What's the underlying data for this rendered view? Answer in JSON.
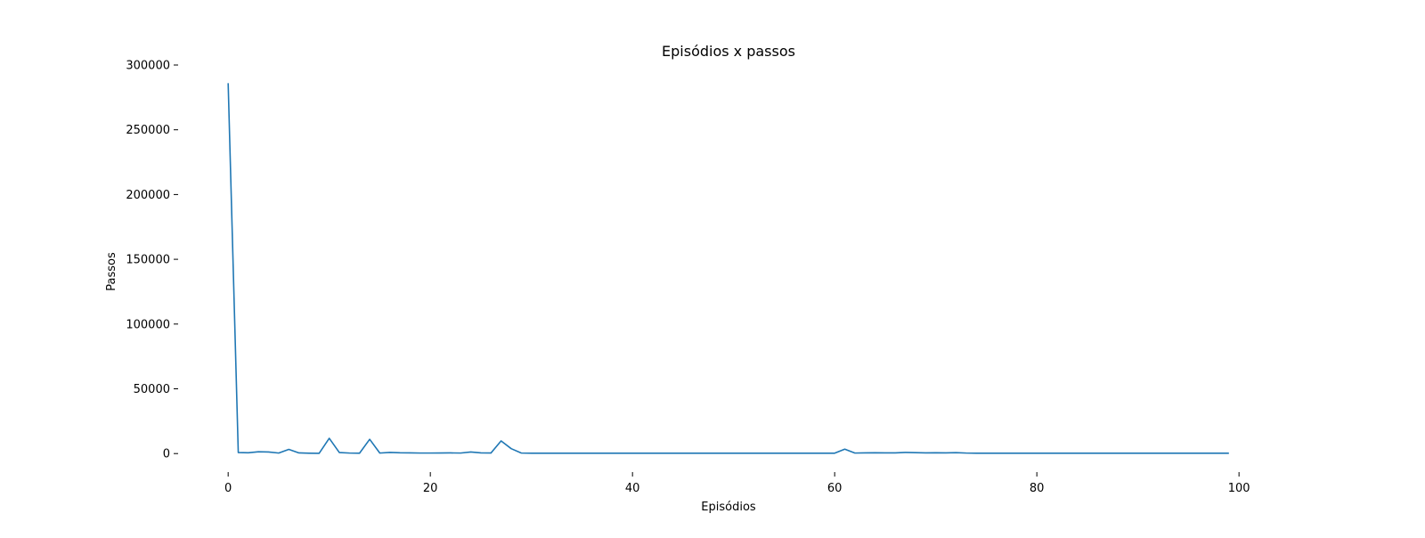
{
  "chart_data": {
    "type": "line",
    "title": "Episódios x passos",
    "xlabel": "Episódios",
    "ylabel": "Passos",
    "xlim": [
      -4.95,
      103.95
    ],
    "ylim": [
      -14300,
      300000
    ],
    "xticks": [
      0,
      20,
      40,
      60,
      80,
      100
    ],
    "yticks": [
      0,
      50000,
      100000,
      150000,
      200000,
      250000,
      300000
    ],
    "grid": false,
    "legend": "none",
    "series": [
      {
        "color": "#1f77b4",
        "x": [
          0,
          1,
          2,
          3,
          4,
          5,
          6,
          7,
          8,
          9,
          10,
          11,
          12,
          13,
          14,
          15,
          16,
          17,
          18,
          19,
          20,
          21,
          22,
          23,
          24,
          25,
          26,
          27,
          28,
          29,
          30,
          31,
          32,
          33,
          34,
          35,
          36,
          37,
          38,
          39,
          40,
          41,
          42,
          43,
          44,
          45,
          46,
          47,
          48,
          49,
          50,
          51,
          52,
          53,
          54,
          55,
          56,
          57,
          58,
          59,
          60,
          61,
          62,
          63,
          64,
          65,
          66,
          67,
          68,
          69,
          70,
          71,
          72,
          73,
          74,
          75,
          76,
          77,
          78,
          79,
          80,
          81,
          82,
          83,
          84,
          85,
          86,
          87,
          88,
          89,
          90,
          91,
          92,
          93,
          94,
          95,
          96,
          97,
          98,
          99
        ],
        "y": [
          286000,
          800,
          600,
          1400,
          1200,
          400,
          3200,
          500,
          300,
          200,
          11800,
          800,
          400,
          300,
          11000,
          400,
          900,
          600,
          500,
          400,
          400,
          450,
          500,
          400,
          1200,
          500,
          450,
          9800,
          3800,
          400,
          300,
          300,
          300,
          300,
          300,
          300,
          300,
          300,
          300,
          300,
          300,
          300,
          300,
          300,
          300,
          300,
          300,
          300,
          300,
          300,
          300,
          300,
          300,
          300,
          300,
          300,
          300,
          300,
          300,
          300,
          300,
          3400,
          400,
          500,
          600,
          500,
          500,
          900,
          700,
          500,
          600,
          500,
          700,
          400,
          300,
          300,
          300,
          300,
          300,
          300,
          300,
          300,
          300,
          300,
          300,
          300,
          300,
          300,
          300,
          300,
          300,
          300,
          300,
          300,
          300,
          300,
          300,
          300,
          300,
          300
        ]
      }
    ]
  }
}
